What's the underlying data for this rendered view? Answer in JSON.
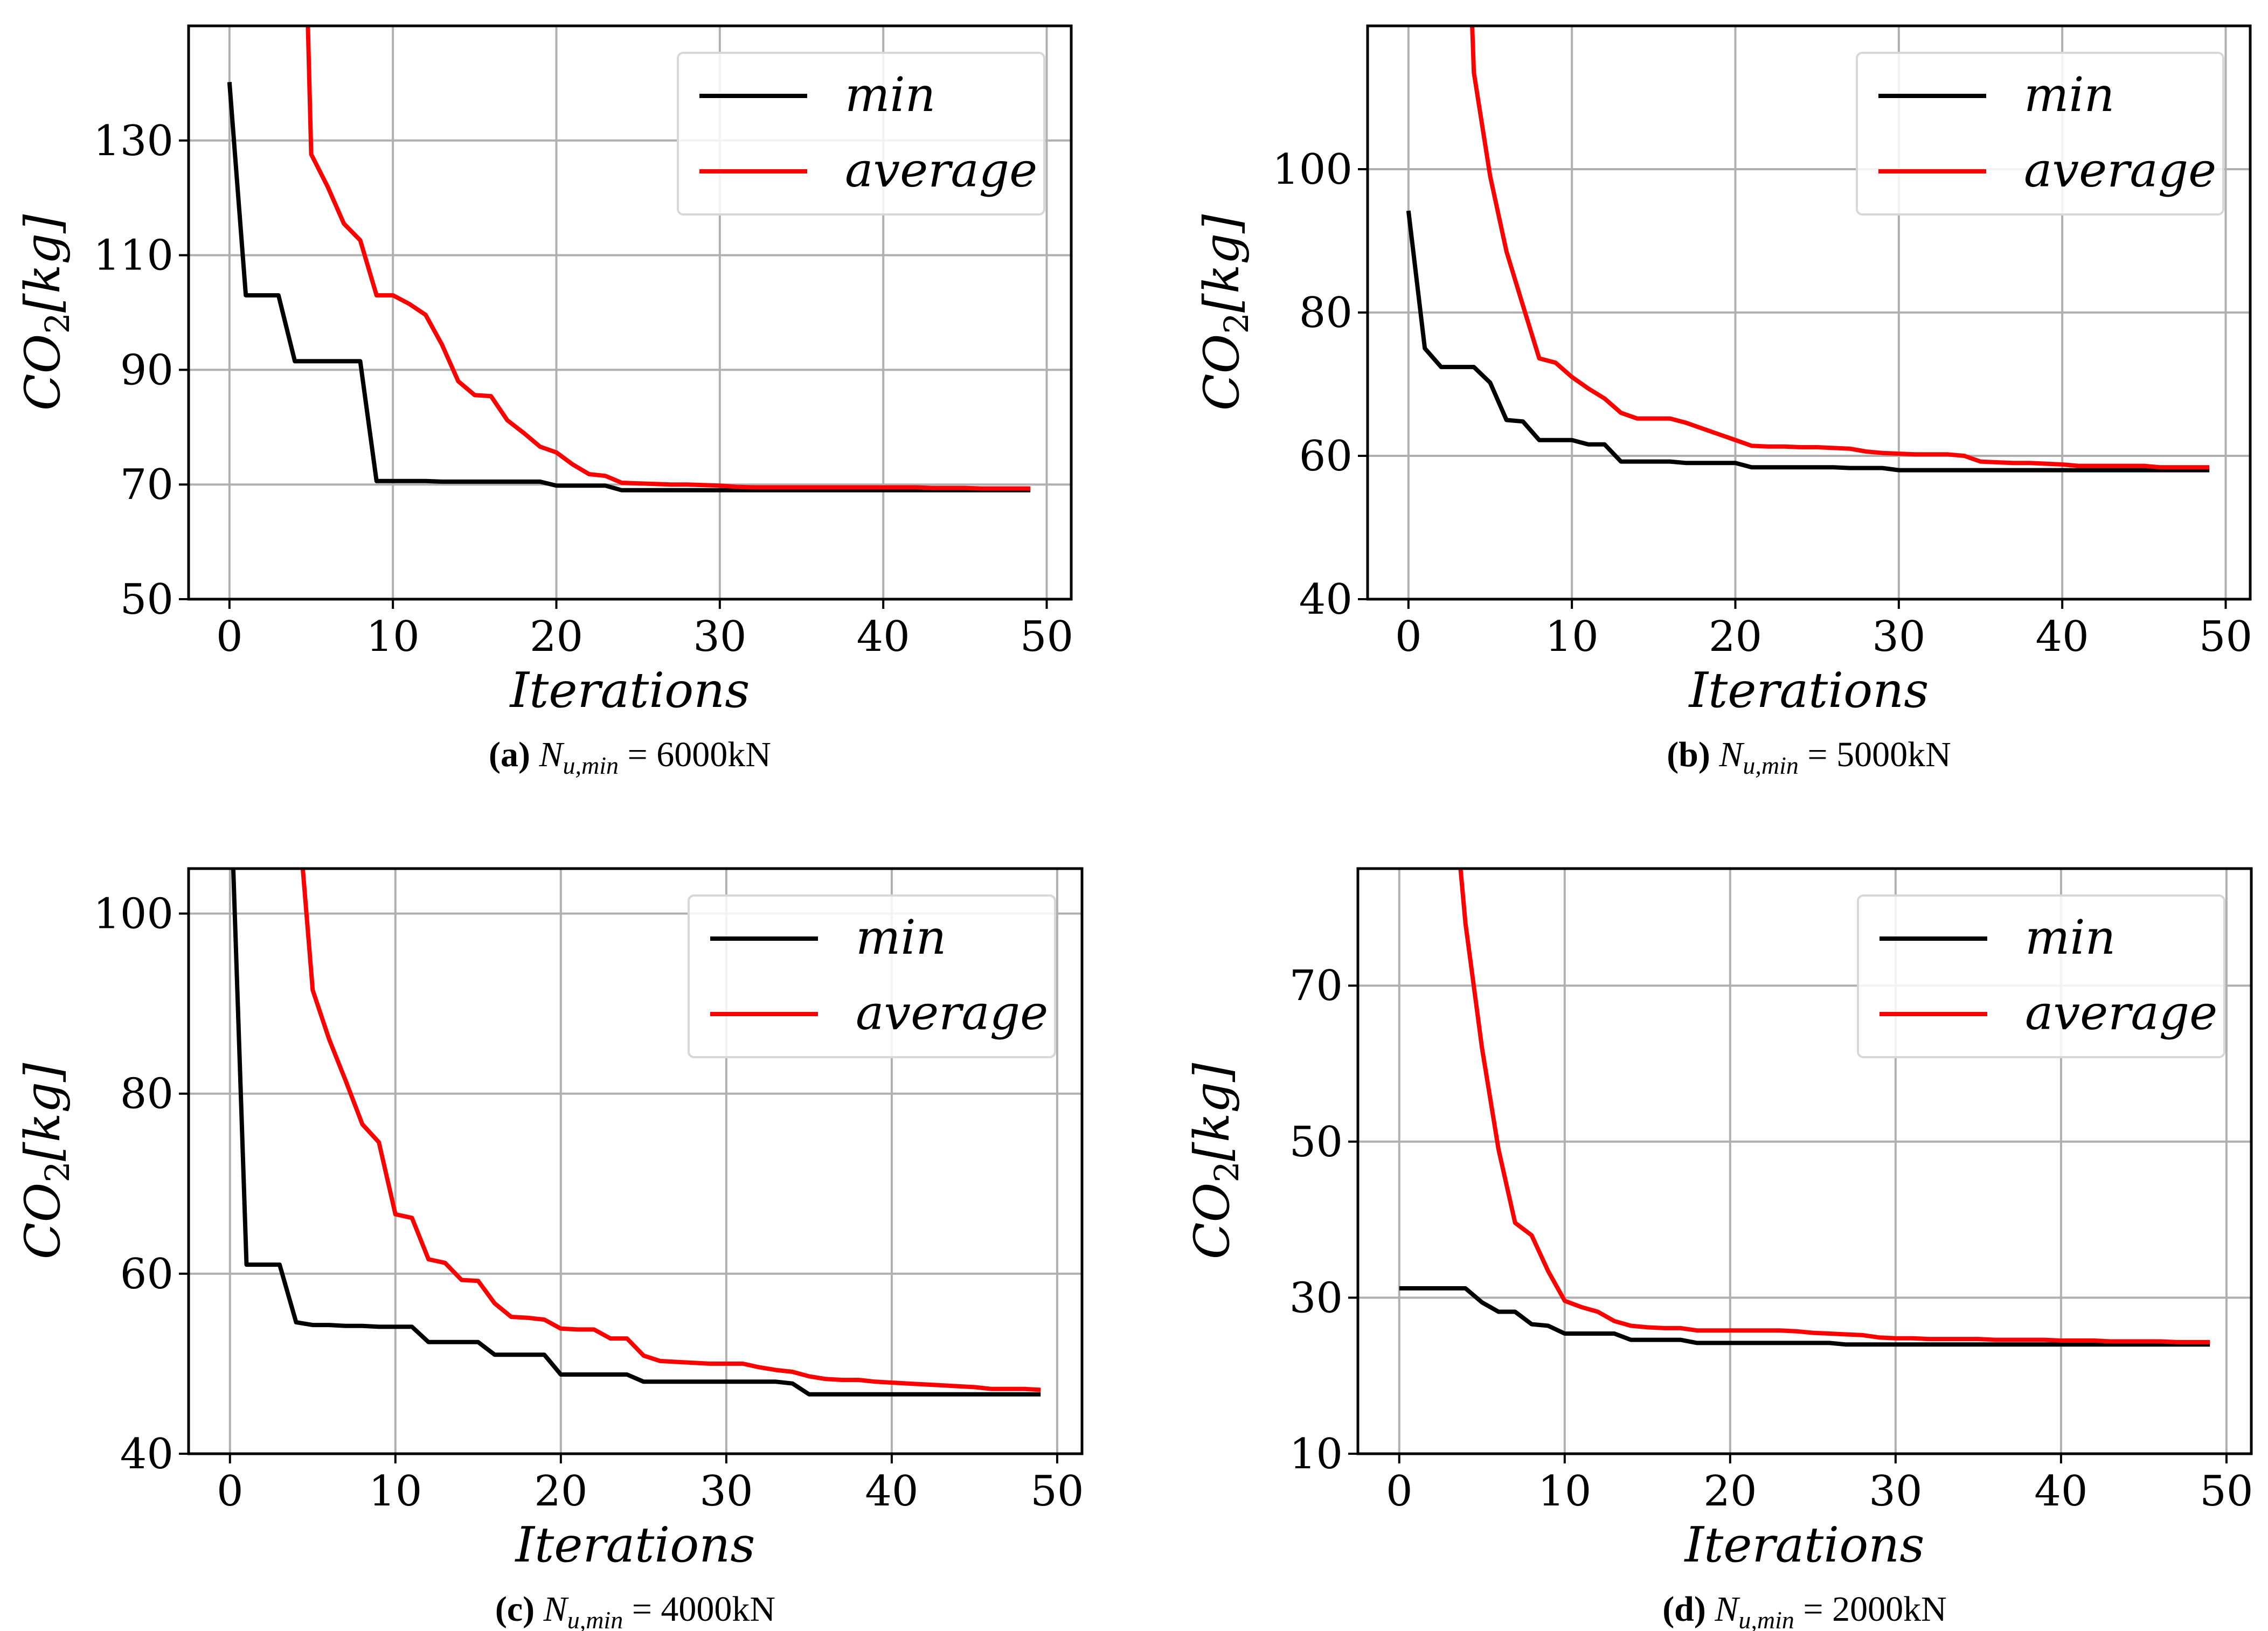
{
  "figure": {
    "subcaption_symbol": "N",
    "subcaption_subscript": "u,min",
    "subcaption_equals": " = "
  },
  "colors": {
    "min": "#000000",
    "average": "#ff0000",
    "grid": "#b0b0b0"
  },
  "chart_data": [
    {
      "panel": "a",
      "type": "line",
      "caption_letter": "(a)",
      "caption_value": "6000kN",
      "xlabel": "Iterations",
      "ylabel": "CO2[kg]",
      "xlim": [
        -2.5,
        51.5
      ],
      "ylim": [
        50,
        150
      ],
      "xticks": [
        0,
        10,
        20,
        30,
        40,
        50
      ],
      "yticks": [
        50,
        70,
        90,
        110,
        130
      ],
      "grid": true,
      "legend_position": "upper-right",
      "series": [
        {
          "name": "min",
          "color": "#000000",
          "x": [
            0,
            1,
            2,
            3,
            4,
            5,
            6,
            7,
            8,
            9,
            10,
            11,
            12,
            13,
            14,
            15,
            16,
            17,
            18,
            19,
            20,
            21,
            22,
            23,
            24,
            25,
            26,
            27,
            28,
            29,
            30,
            31,
            32,
            33,
            34,
            35,
            36,
            37,
            38,
            39,
            40,
            41,
            42,
            43,
            44,
            45,
            46,
            47,
            48,
            49
          ],
          "y": [
            140.2,
            103,
            103,
            103,
            91.5,
            91.5,
            91.5,
            91.5,
            91.5,
            70.6,
            70.6,
            70.6,
            70.6,
            70.5,
            70.5,
            70.5,
            70.5,
            70.5,
            70.5,
            70.5,
            69.8,
            69.8,
            69.8,
            69.8,
            69.0,
            69.0,
            69.0,
            69.0,
            69.0,
            69.0,
            69.0,
            69.0,
            69.0,
            69.0,
            69.0,
            69.0,
            69.0,
            69.0,
            69.0,
            69.0,
            69.0,
            69.0,
            69.0,
            69.0,
            69.0,
            69.0,
            69.0,
            69.0,
            69.0,
            69.0
          ]
        },
        {
          "name": "average",
          "color": "#ff0000",
          "x": [
            4.8,
            5,
            6,
            7,
            8,
            9,
            10,
            11,
            12,
            13,
            14,
            15,
            16,
            17,
            18,
            19,
            20,
            21,
            22,
            23,
            24,
            25,
            26,
            27,
            28,
            29,
            30,
            31,
            32,
            33,
            34,
            35,
            36,
            37,
            38,
            39,
            40,
            41,
            42,
            43,
            44,
            45,
            46,
            47,
            48,
            49
          ],
          "y": [
            150,
            127.6,
            122,
            115.5,
            112.6,
            103,
            103,
            101.5,
            99.6,
            94.4,
            88,
            85.6,
            85.4,
            81.2,
            79,
            76.6,
            75.6,
            73.5,
            71.8,
            71.5,
            70.3,
            70.2,
            70.1,
            70.0,
            70.0,
            69.9,
            69.8,
            69.6,
            69.5,
            69.5,
            69.5,
            69.5,
            69.5,
            69.5,
            69.5,
            69.5,
            69.5,
            69.5,
            69.5,
            69.4,
            69.4,
            69.4,
            69.3,
            69.3,
            69.3,
            69.3
          ]
        }
      ]
    },
    {
      "panel": "b",
      "type": "line",
      "caption_letter": "(b)",
      "caption_value": "5000kN",
      "xlabel": "Iterations",
      "ylabel": "CO2[kg]",
      "xlim": [
        -2.5,
        51.5
      ],
      "ylim": [
        40,
        120
      ],
      "xticks": [
        0,
        10,
        20,
        30,
        40,
        50
      ],
      "yticks": [
        40,
        60,
        80,
        100
      ],
      "grid": true,
      "legend_position": "upper-right",
      "series": [
        {
          "name": "min",
          "color": "#000000",
          "x": [
            0,
            1,
            2,
            3,
            4,
            5,
            6,
            7,
            8,
            9,
            10,
            11,
            12,
            13,
            14,
            15,
            16,
            17,
            18,
            19,
            20,
            21,
            22,
            23,
            24,
            25,
            26,
            27,
            28,
            29,
            30,
            31,
            32,
            33,
            34,
            35,
            36,
            37,
            38,
            39,
            40,
            41,
            42,
            43,
            44,
            45,
            46,
            47,
            48,
            49
          ],
          "y": [
            94.2,
            75,
            72.4,
            72.4,
            72.4,
            70.2,
            65,
            64.8,
            62.2,
            62.2,
            62.2,
            61.6,
            61.6,
            59.2,
            59.2,
            59.2,
            59.2,
            59.0,
            59.0,
            59.0,
            59.0,
            58.4,
            58.4,
            58.4,
            58.4,
            58.4,
            58.4,
            58.3,
            58.3,
            58.3,
            58.0,
            58.0,
            58.0,
            58.0,
            58.0,
            58.0,
            58.0,
            58.0,
            58.0,
            58.0,
            58.0,
            58.0,
            58.0,
            58.0,
            58.0,
            58.0,
            58.0,
            58.0,
            58.0,
            58.0
          ]
        },
        {
          "name": "average",
          "color": "#ff0000",
          "x": [
            3.9,
            4,
            5,
            6,
            7,
            8,
            9,
            10,
            11,
            12,
            13,
            14,
            15,
            16,
            17,
            18,
            19,
            20,
            21,
            22,
            23,
            24,
            25,
            26,
            27,
            28,
            29,
            30,
            31,
            32,
            33,
            34,
            35,
            36,
            37,
            38,
            39,
            40,
            41,
            42,
            43,
            44,
            45,
            46,
            47,
            48,
            49
          ],
          "y": [
            120,
            113.5,
            99,
            88.5,
            81,
            73.6,
            73,
            71,
            69.4,
            68,
            66,
            65.2,
            65.2,
            65.2,
            64.6,
            63.8,
            63,
            62.2,
            61.4,
            61.3,
            61.3,
            61.2,
            61.2,
            61.1,
            61.0,
            60.6,
            60.4,
            60.3,
            60.2,
            60.2,
            60.2,
            60.0,
            59.2,
            59.1,
            59.0,
            59.0,
            58.9,
            58.8,
            58.6,
            58.6,
            58.6,
            58.6,
            58.6,
            58.4,
            58.4,
            58.4,
            58.4
          ]
        }
      ]
    },
    {
      "panel": "c",
      "type": "line",
      "caption_letter": "(c)",
      "caption_value": "4000kN",
      "xlabel": "Iterations",
      "ylabel": "CO2[kg]",
      "xlim": [
        -2.5,
        51.5
      ],
      "ylim": [
        40,
        105
      ],
      "xticks": [
        0,
        10,
        20,
        30,
        40,
        50
      ],
      "yticks": [
        40,
        60,
        80,
        100
      ],
      "grid": true,
      "legend_position": "upper-right",
      "series": [
        {
          "name": "min",
          "color": "#000000",
          "x": [
            0.2,
            1,
            2,
            3,
            4,
            5,
            6,
            7,
            8,
            9,
            10,
            11,
            12,
            13,
            14,
            15,
            16,
            17,
            18,
            19,
            20,
            21,
            22,
            23,
            24,
            25,
            26,
            27,
            28,
            29,
            30,
            31,
            32,
            33,
            34,
            35,
            36,
            37,
            38,
            39,
            40,
            41,
            42,
            43,
            44,
            45,
            46,
            47,
            48,
            49
          ],
          "y": [
            105,
            61,
            61,
            61,
            54.6,
            54.3,
            54.3,
            54.2,
            54.2,
            54.1,
            54.1,
            54.1,
            52.4,
            52.4,
            52.4,
            52.4,
            51.0,
            51.0,
            51.0,
            51.0,
            48.8,
            48.8,
            48.8,
            48.8,
            48.8,
            48.0,
            48.0,
            48.0,
            48.0,
            48.0,
            48.0,
            48.0,
            48.0,
            48.0,
            47.8,
            46.6,
            46.6,
            46.6,
            46.6,
            46.6,
            46.6,
            46.6,
            46.6,
            46.6,
            46.6,
            46.6,
            46.6,
            46.6,
            46.6,
            46.6
          ]
        },
        {
          "name": "average",
          "color": "#ff0000",
          "x": [
            4.4,
            5,
            6,
            7,
            8,
            9,
            10,
            11,
            12,
            13,
            14,
            15,
            16,
            17,
            18,
            19,
            20,
            21,
            22,
            23,
            24,
            25,
            26,
            27,
            28,
            29,
            30,
            31,
            32,
            33,
            34,
            35,
            36,
            37,
            38,
            39,
            40,
            41,
            42,
            43,
            44,
            45,
            46,
            47,
            48,
            49
          ],
          "y": [
            105,
            91.5,
            86,
            81.4,
            76.6,
            74.6,
            66.6,
            66.2,
            61.6,
            61.2,
            59.3,
            59.2,
            56.7,
            55.2,
            55.1,
            54.9,
            53.9,
            53.8,
            53.8,
            52.8,
            52.8,
            50.9,
            50.3,
            50.2,
            50.1,
            50.0,
            50.0,
            50.0,
            49.6,
            49.3,
            49.1,
            48.6,
            48.3,
            48.2,
            48.2,
            48.0,
            47.9,
            47.8,
            47.7,
            47.6,
            47.5,
            47.4,
            47.2,
            47.2,
            47.2,
            47.1
          ]
        }
      ]
    },
    {
      "panel": "d",
      "type": "line",
      "caption_letter": "(d)",
      "caption_value": "2000kN",
      "xlabel": "Iterations",
      "ylabel": "CO2[kg]",
      "xlim": [
        -2.5,
        51.5
      ],
      "ylim": [
        10,
        85
      ],
      "xticks": [
        0,
        10,
        20,
        30,
        40,
        50
      ],
      "yticks": [
        10,
        30,
        50,
        70
      ],
      "grid": true,
      "legend_position": "upper-right",
      "series": [
        {
          "name": "min",
          "color": "#000000",
          "x": [
            0,
            1,
            2,
            3,
            4,
            5,
            6,
            7,
            8,
            9,
            10,
            11,
            12,
            13,
            14,
            15,
            16,
            17,
            18,
            19,
            20,
            21,
            22,
            23,
            24,
            25,
            26,
            27,
            28,
            29,
            30,
            31,
            32,
            33,
            34,
            35,
            36,
            37,
            38,
            39,
            40,
            41,
            42,
            43,
            44,
            45,
            46,
            47,
            48,
            49
          ],
          "y": [
            31.2,
            31.2,
            31.2,
            31.2,
            31.2,
            29.4,
            28.2,
            28.2,
            26.6,
            26.4,
            25.4,
            25.4,
            25.4,
            25.4,
            24.6,
            24.6,
            24.6,
            24.6,
            24.2,
            24.2,
            24.2,
            24.2,
            24.2,
            24.2,
            24.2,
            24.2,
            24.2,
            24.0,
            24.0,
            24.0,
            24.0,
            24.0,
            24.0,
            24.0,
            24.0,
            24.0,
            24.0,
            24.0,
            24.0,
            24.0,
            24.0,
            24.0,
            24.0,
            24.0,
            24.0,
            24.0,
            24.0,
            24.0,
            24.0,
            24.0
          ]
        },
        {
          "name": "average",
          "color": "#ff0000",
          "x": [
            3.7,
            4,
            5,
            6,
            7,
            8,
            9,
            10,
            11,
            12,
            13,
            14,
            15,
            16,
            17,
            18,
            19,
            20,
            21,
            22,
            23,
            24,
            25,
            26,
            27,
            28,
            29,
            30,
            31,
            32,
            33,
            34,
            35,
            36,
            37,
            38,
            39,
            40,
            41,
            42,
            43,
            44,
            45,
            46,
            47,
            48,
            49
          ],
          "y": [
            85,
            78,
            62,
            49,
            39.6,
            38,
            33.4,
            29.6,
            28.8,
            28.2,
            27.0,
            26.4,
            26.2,
            26.1,
            26.1,
            25.8,
            25.8,
            25.8,
            25.8,
            25.8,
            25.8,
            25.7,
            25.5,
            25.4,
            25.3,
            25.2,
            24.9,
            24.8,
            24.8,
            24.7,
            24.7,
            24.7,
            24.7,
            24.6,
            24.6,
            24.6,
            24.6,
            24.5,
            24.5,
            24.5,
            24.4,
            24.4,
            24.4,
            24.4,
            24.3,
            24.3,
            24.3
          ]
        }
      ]
    }
  ]
}
